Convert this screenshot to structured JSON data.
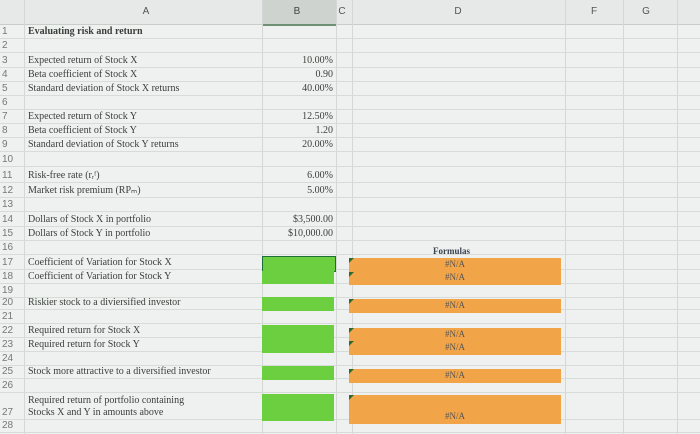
{
  "columns": [
    "A",
    "B",
    "C",
    "D",
    "F",
    "G"
  ],
  "title": "Evaluating risk and return",
  "rows": [
    {
      "n": "1"
    },
    {
      "n": "2"
    },
    {
      "n": "3"
    },
    {
      "n": "4"
    },
    {
      "n": "5"
    },
    {
      "n": "6"
    },
    {
      "n": "7"
    },
    {
      "n": "8"
    },
    {
      "n": "9"
    },
    {
      "n": "10"
    },
    {
      "n": "11"
    },
    {
      "n": "12"
    },
    {
      "n": "13"
    },
    {
      "n": "14"
    },
    {
      "n": "15"
    },
    {
      "n": "16"
    },
    {
      "n": "17"
    },
    {
      "n": "18"
    },
    {
      "n": "19"
    },
    {
      "n": "20"
    },
    {
      "n": "21"
    },
    {
      "n": "22"
    },
    {
      "n": "23"
    },
    {
      "n": "24"
    },
    {
      "n": "25"
    },
    {
      "n": "26"
    },
    {
      "n": "27"
    },
    {
      "n": "28"
    }
  ],
  "inputs": {
    "exp_ret_x_label": "Expected return of Stock X",
    "exp_ret_x": "10.00%",
    "beta_x_label": "Beta coefficient of Stock X",
    "beta_x": "0.90",
    "sd_x_label": "Standard deviation of Stock X returns",
    "sd_x": "40.00%",
    "exp_ret_y_label": "Expected return of Stock Y",
    "exp_ret_y": "12.50%",
    "beta_y_label": "Beta coefficient of Stock Y",
    "beta_y": "1.20",
    "sd_y_label": "Standard deviation of Stock Y returns",
    "sd_y": "20.00%",
    "rf_label": "Risk-free rate (rᵣᶠ)",
    "rf": "6.00%",
    "mrp_label": "Market risk premium (RPₘ)",
    "mrp": "5.00%",
    "dollars_x_label": "Dollars of Stock X in portfolio",
    "dollars_x": "$3,500.00",
    "dollars_y_label": "Dollars of Stock Y in portfolio",
    "dollars_y": "$10,000.00"
  },
  "outputs": {
    "formulas_header": "Formulas",
    "cv_x_label": "Coefficient of Variation for Stock X",
    "cv_y_label": "Coefficient of Variation for Stock Y",
    "riskier_label": "Riskier stock to a diviersified investor",
    "req_x_label": "Required return for Stock X",
    "req_y_label": "Required return for Stock Y",
    "attractive_label": "Stock more attractive to a diversified investor",
    "portfolio_label_1": "Required return of portfolio containing",
    "portfolio_label_2": "Stocks X and Y in amounts above",
    "na": "#N/A"
  },
  "colors": {
    "input_green": "#6ccf3f",
    "formula_orange": "#f2a448"
  }
}
